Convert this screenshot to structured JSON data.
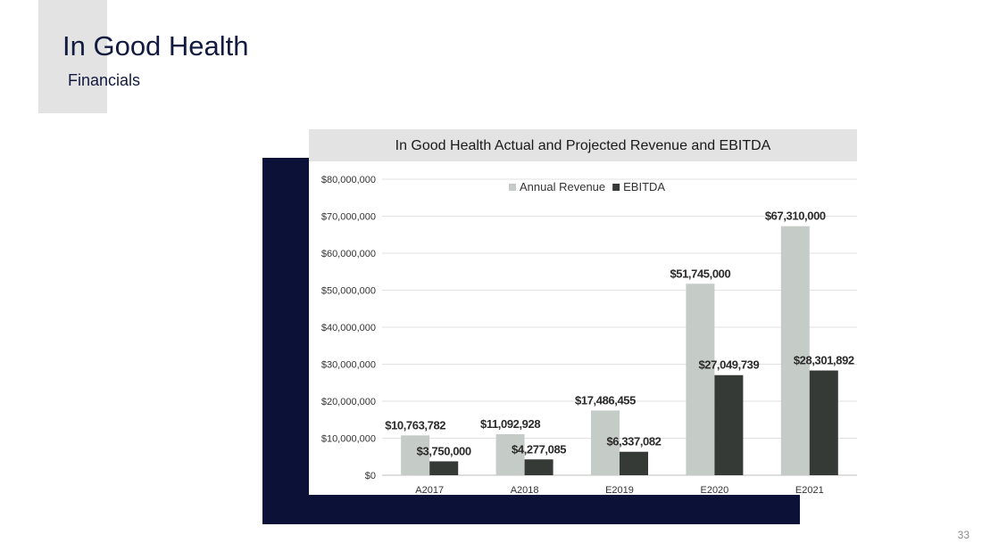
{
  "slide": {
    "title": "In Good Health",
    "subtitle": "Financials",
    "page_number": "33"
  },
  "colors": {
    "navy": "#0c1138",
    "panel_gray": "#e3e3e3",
    "revenue_bar": "#c5cbc7",
    "ebitda_bar": "#353a37",
    "title_text": "#121a3f"
  },
  "chart_data": {
    "type": "bar",
    "title": "In Good Health Actual and Projected Revenue and EBITDA",
    "xlabel": "",
    "ylabel": "",
    "categories": [
      "A2017",
      "A2018",
      "E2019",
      "E2020",
      "E2021"
    ],
    "ylim": [
      0,
      80000000
    ],
    "yticks": [
      0,
      10000000,
      20000000,
      30000000,
      40000000,
      50000000,
      60000000,
      70000000,
      80000000
    ],
    "ytick_labels": [
      "$0",
      "$10,000,000",
      "$20,000,000",
      "$30,000,000",
      "$40,000,000",
      "$50,000,000",
      "$60,000,000",
      "$70,000,000",
      "$80,000,000"
    ],
    "grid": true,
    "legend_position": "top-center",
    "series": [
      {
        "name": "Annual Revenue",
        "color": "#c5cbc7",
        "values": [
          10763782,
          11092928,
          17486455,
          51745000,
          67310000
        ],
        "labels": [
          "$10,763,782",
          "$11,092,928",
          "$17,486,455",
          "$51,745,000",
          "$67,310,000"
        ]
      },
      {
        "name": "EBITDA",
        "color": "#353a37",
        "values": [
          3750000,
          4277085,
          6337082,
          27049739,
          28301892
        ],
        "labels": [
          "$3,750,000",
          "$4,277,085",
          "$6,337,082",
          "$27,049,739",
          "$28,301,892"
        ]
      }
    ]
  }
}
